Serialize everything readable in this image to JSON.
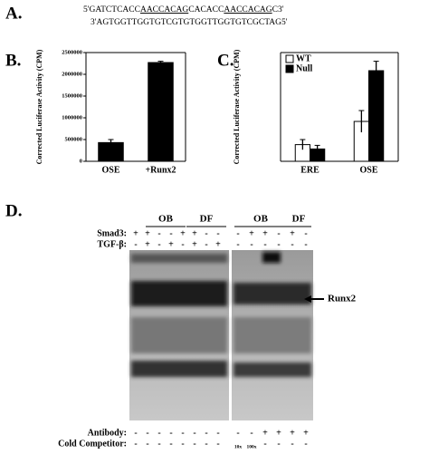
{
  "panel_labels": [
    "A.",
    "B.",
    "C.",
    "D."
  ],
  "panel_a": {
    "top_strand": [
      "5'GATCTCACC",
      "AACCACAG",
      "CACACC",
      "AACCACAG",
      "C3'"
    ],
    "bottom_strand": "3'AGTGGTTGGTGTCGTGTGGTTGGTGTCGCTAG5'"
  },
  "chart_data": [
    {
      "type": "bar",
      "y_label": "Corrected Luciferase Activity (CPM)",
      "categories": [
        "OSE",
        "+Runx2"
      ],
      "values": [
        430000,
        2270000
      ],
      "errors": [
        70000,
        30000
      ],
      "color": "#000000",
      "ylim": [
        0,
        2500000
      ],
      "yticks": [
        0,
        500000,
        1000000,
        1500000,
        2000000,
        2500000
      ]
    },
    {
      "type": "bar",
      "y_label": "Corrected Luciferase Activity (CPM)",
      "categories": [
        "ERE",
        "OSE"
      ],
      "series": [
        {
          "name": "WT",
          "color": "#ffffff",
          "values": [
            2.3,
            5.5
          ],
          "errors": [
            0.7,
            1.5
          ]
        },
        {
          "name": "Null",
          "color": "#000000",
          "values": [
            1.7,
            12.5
          ],
          "errors": [
            0.5,
            1.3
          ]
        }
      ],
      "ylim": [
        0,
        15
      ],
      "legend": "upper left"
    }
  ],
  "panel_d": {
    "groups": [
      "OB",
      "DF",
      "OB",
      "DF"
    ],
    "band_label": "Runx2",
    "rows": [
      {
        "label": "Smad3:",
        "lanes": [
          "+",
          "+",
          "-",
          "-",
          "+",
          "+",
          "-",
          "-",
          "-",
          "+",
          "+",
          "-",
          "+",
          "-"
        ]
      },
      {
        "label": "TGF-β:",
        "lanes": [
          "-",
          "+",
          "-",
          "+",
          "-",
          "+",
          "-",
          "+",
          "-",
          "-",
          "-",
          "-",
          "-",
          "-"
        ]
      },
      {
        "label": "Antibody:",
        "lanes": [
          "-",
          "-",
          "-",
          "-",
          "-",
          "-",
          "-",
          "-",
          "-",
          "-",
          "+",
          "+",
          "+",
          "+"
        ]
      },
      {
        "label": "Cold Competitor:",
        "lanes": [
          "-",
          "-",
          "-",
          "-",
          "-",
          "-",
          "-",
          "-",
          "10x",
          "100x",
          "-",
          "-",
          "-",
          "-"
        ]
      }
    ]
  }
}
